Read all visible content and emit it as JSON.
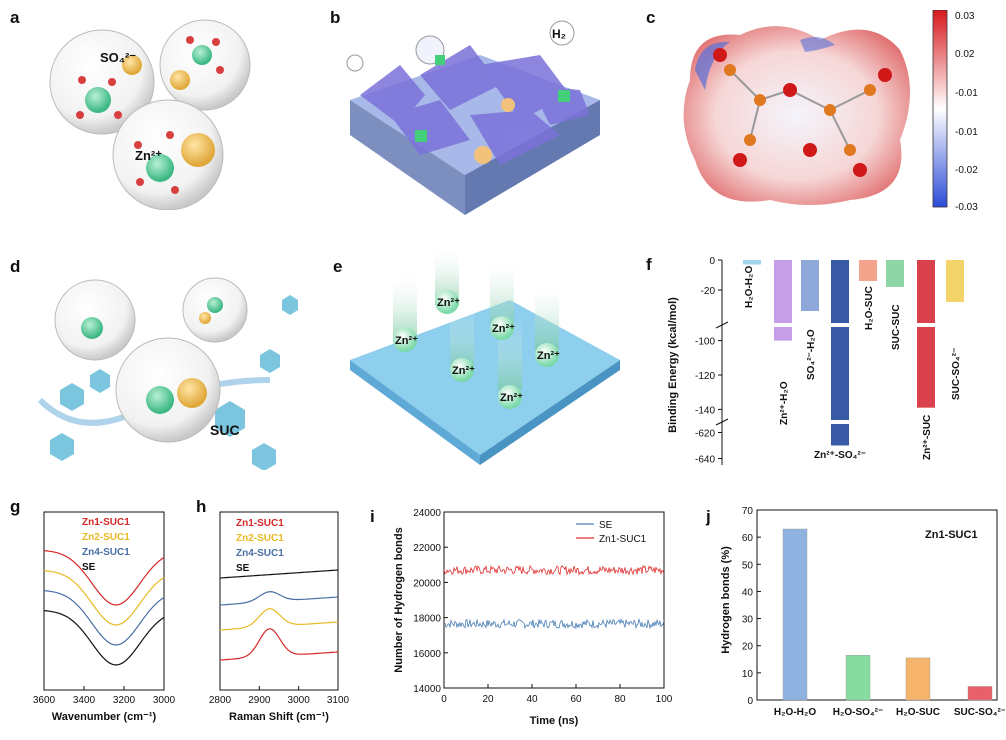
{
  "panel_letters": {
    "a": "a",
    "b": "b",
    "c": "c",
    "d": "d",
    "e": "e",
    "f": "f",
    "g": "g",
    "h": "h",
    "i": "i",
    "j": "j"
  },
  "a": {
    "sulfate_label": "SO₄²⁻",
    "zinc_label": "Zn²⁺"
  },
  "b": {
    "h2_label": "H₂"
  },
  "c": {
    "colorbar_ticks": [
      "0.03",
      "0.02",
      "-0.01",
      "-0.01",
      "-0.02",
      "-0.03"
    ],
    "colors": {
      "pos": "#d7191c",
      "neg": "#2c4bd6"
    }
  },
  "d": {
    "suc_label": "SUC"
  },
  "e": {
    "ion_label": "Zn²⁺"
  },
  "chart_data": [
    {
      "panel": "f",
      "type": "bar",
      "ylabel": "Binding Energy (kcal/mol)",
      "yticks": [
        "0",
        "-20",
        "-100",
        "-120",
        "-140",
        "-620",
        "-640"
      ],
      "categories": [
        "H₂O-H₂O",
        "Zn²⁺-H₂O",
        "SO₄²⁻-H₂O",
        "Zn²⁺-SO₄²⁻",
        "H₂O-SUC",
        "SUC-SUC",
        "Zn²⁺-SUC",
        "SUC-SO₄²⁻"
      ],
      "values": [
        -3,
        -100,
        -34,
        -630,
        -14,
        -18,
        -139,
        -28
      ],
      "colors": [
        "#9fd6ea",
        "#c49ee6",
        "#8fa8da",
        "#3a5aa8",
        "#f4a38c",
        "#8fd6a6",
        "#d9414c",
        "#f3d46a"
      ]
    },
    {
      "panel": "g",
      "type": "line",
      "xlabel": "Wavenumber (cm⁻¹)",
      "xticks": [
        "3600",
        "3400",
        "3200",
        "3000"
      ],
      "xlim": [
        3600,
        3000
      ],
      "legend": [
        "Zn1-SUC1",
        "Zn2-SUC1",
        "Zn4-SUC1",
        "SE"
      ],
      "colors": [
        "#d62728",
        "#e8b923",
        "#4a6fa5",
        "#111111"
      ]
    },
    {
      "panel": "h",
      "type": "line",
      "xlabel": "Raman Shift (cm⁻¹)",
      "xticks": [
        "2800",
        "2900",
        "3000",
        "3100"
      ],
      "xlim": [
        2800,
        3100
      ],
      "legend": [
        "Zn1-SUC1",
        "Zn2-SUC1",
        "Zn4-SUC1",
        "SE"
      ],
      "colors": [
        "#d62728",
        "#e8b923",
        "#4a6fa5",
        "#111111"
      ]
    },
    {
      "panel": "i",
      "type": "line",
      "xlabel": "Time (ns)",
      "ylabel": "Number of Hydrogen bonds",
      "xticks": [
        "0",
        "20",
        "40",
        "60",
        "80",
        "100"
      ],
      "xlim": [
        0,
        100
      ],
      "yticks": [
        "14000",
        "16000",
        "18000",
        "20000",
        "22000",
        "24000"
      ],
      "ylim": [
        14000,
        24000
      ],
      "series": [
        {
          "name": "SE",
          "mean": 17650,
          "color": "#4a7fb5"
        },
        {
          "name": "Zn1-SUC1",
          "mean": 20700,
          "color": "#e03030"
        }
      ]
    },
    {
      "panel": "j",
      "type": "bar",
      "title": "Zn1-SUC1",
      "ylabel": "Hydrogen bonds (%)",
      "yticks": [
        "0",
        "10",
        "20",
        "30",
        "40",
        "50",
        "60",
        "70"
      ],
      "ylim": [
        0,
        70
      ],
      "categories": [
        "H₂O-H₂O",
        "H₂O-SO₄²⁻",
        "H₂O-SUC",
        "SUC-SO₄²⁻"
      ],
      "values": [
        63,
        16.5,
        15.5,
        5
      ],
      "colors": [
        "#8fb3e0",
        "#86dca0",
        "#f6b36b",
        "#e8606a"
      ]
    }
  ]
}
